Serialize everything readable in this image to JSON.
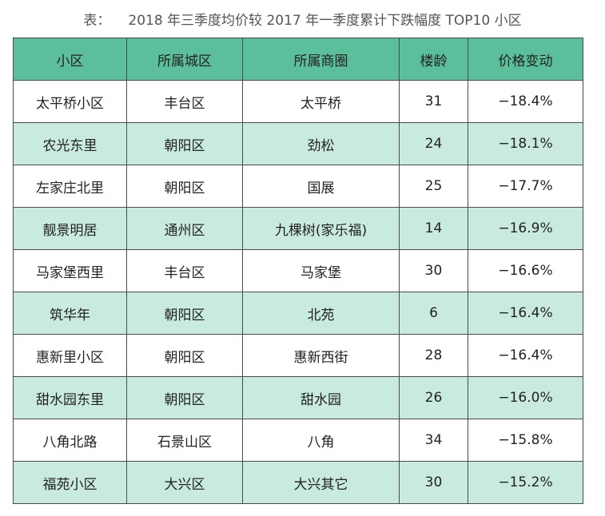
{
  "caption": {
    "prefix": "表：",
    "title": "2018 年三季度均价较 2017 年一季度累计下跌幅度 TOP10  小区"
  },
  "table": {
    "headers": [
      "小区",
      "所属城区",
      "所属商圈",
      "楼龄",
      "价格变动"
    ],
    "rows": [
      [
        "太平桥小区",
        "丰台区",
        "太平桥",
        "31",
        "−18.4%"
      ],
      [
        "农光东里",
        "朝阳区",
        "劲松",
        "24",
        "−18.1%"
      ],
      [
        "左家庄北里",
        "朝阳区",
        "国展",
        "25",
        "−17.7%"
      ],
      [
        "靓景明居",
        "通州区",
        "九棵树(家乐福)",
        "14",
        "−16.9%"
      ],
      [
        "马家堡西里",
        "丰台区",
        "马家堡",
        "30",
        "−16.6%"
      ],
      [
        "筑华年",
        "朝阳区",
        "北苑",
        "6",
        "−16.4%"
      ],
      [
        "惠新里小区",
        "朝阳区",
        "惠新西街",
        "28",
        "−16.4%"
      ],
      [
        "甜水园东里",
        "朝阳区",
        "甜水园",
        "26",
        "−16.0%"
      ],
      [
        "八角北路",
        "石景山区",
        "八角",
        "34",
        "−15.8%"
      ],
      [
        "福苑小区",
        "大兴区",
        "大兴其它",
        "30",
        "−15.2%"
      ]
    ]
  },
  "colors": {
    "header_background": "#5cbf9c",
    "stripe_background": "#c8ebdd",
    "border": "#4a4a4a"
  }
}
